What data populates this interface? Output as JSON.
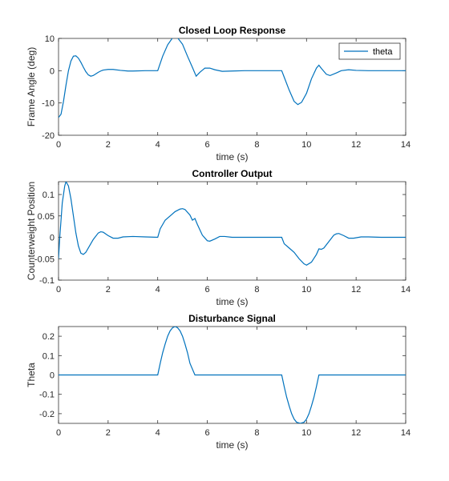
{
  "chart_data": [
    {
      "type": "line",
      "title": "Closed Loop Response",
      "xlabel": "time (s)",
      "ylabel": "Frame Angle (deg)",
      "xlim": [
        0,
        14
      ],
      "ylim": [
        -20,
        10
      ],
      "xticks": [
        "0",
        "2",
        "4",
        "6",
        "8",
        "10",
        "12",
        "14"
      ],
      "yticks": [
        "-20",
        "-10",
        "0",
        "10"
      ],
      "grid": false,
      "legend": {
        "location": "top-right",
        "entries": [
          "theta"
        ]
      },
      "series": [
        {
          "name": "theta",
          "color": "#0072bd",
          "points": [
            [
              0,
              -14.5
            ],
            [
              0.1,
              -13.5
            ],
            [
              0.2,
              -9.5
            ],
            [
              0.3,
              -4.5
            ],
            [
              0.4,
              0
            ],
            [
              0.5,
              3
            ],
            [
              0.6,
              4.5
            ],
            [
              0.7,
              4.6
            ],
            [
              0.8,
              3.9
            ],
            [
              0.9,
              2.6
            ],
            [
              1.0,
              1.1
            ],
            [
              1.1,
              -0.3
            ],
            [
              1.2,
              -1.3
            ],
            [
              1.3,
              -1.7
            ],
            [
              1.4,
              -1.5
            ],
            [
              1.5,
              -1.0
            ],
            [
              1.6,
              -0.5
            ],
            [
              1.7,
              -0.1
            ],
            [
              1.8,
              0.2
            ],
            [
              2.0,
              0.4
            ],
            [
              2.2,
              0.4
            ],
            [
              2.5,
              0.1
            ],
            [
              2.8,
              -0.1
            ],
            [
              3.0,
              -0.1
            ],
            [
              3.5,
              0
            ],
            [
              4.0,
              0
            ],
            [
              4.2,
              4.5
            ],
            [
              4.4,
              8
            ],
            [
              4.6,
              10.2
            ],
            [
              4.7,
              10.5
            ],
            [
              4.8,
              10.2
            ],
            [
              5.0,
              8.2
            ],
            [
              5.2,
              4.5
            ],
            [
              5.4,
              1
            ],
            [
              5.55,
              -1.7
            ],
            [
              5.7,
              -0.5
            ],
            [
              5.9,
              0.8
            ],
            [
              6.1,
              0.8
            ],
            [
              6.3,
              0.3
            ],
            [
              6.6,
              -0.2
            ],
            [
              7.0,
              -0.1
            ],
            [
              7.5,
              0
            ],
            [
              8.0,
              0
            ],
            [
              9.0,
              0
            ],
            [
              9.1,
              -2
            ],
            [
              9.3,
              -6
            ],
            [
              9.5,
              -9.5
            ],
            [
              9.65,
              -10.5
            ],
            [
              9.8,
              -9.8
            ],
            [
              10.0,
              -7
            ],
            [
              10.2,
              -2.5
            ],
            [
              10.4,
              0.8
            ],
            [
              10.5,
              1.7
            ],
            [
              10.6,
              0.7
            ],
            [
              10.8,
              -1.1
            ],
            [
              10.95,
              -1.5
            ],
            [
              11.2,
              -0.7
            ],
            [
              11.4,
              0
            ],
            [
              11.7,
              0.3
            ],
            [
              12.0,
              0.1
            ],
            [
              12.5,
              0
            ],
            [
              13.0,
              0
            ],
            [
              14.0,
              0
            ]
          ]
        }
      ]
    },
    {
      "type": "line",
      "title": "Controller Output",
      "xlabel": "time (s)",
      "ylabel": "Counterweight Position",
      "xlim": [
        0,
        14
      ],
      "ylim": [
        -0.1,
        0.13
      ],
      "xticks": [
        "0",
        "2",
        "4",
        "6",
        "8",
        "10",
        "12",
        "14"
      ],
      "yticks": [
        "-0.1",
        "-0.05",
        "0",
        "0.05",
        "0.1"
      ],
      "grid": false,
      "series": [
        {
          "color": "#0072bd",
          "points": [
            [
              0,
              -0.05
            ],
            [
              0.05,
              0
            ],
            [
              0.15,
              0.08
            ],
            [
              0.25,
              0.12
            ],
            [
              0.3,
              0.13
            ],
            [
              0.4,
              0.12
            ],
            [
              0.5,
              0.09
            ],
            [
              0.6,
              0.05
            ],
            [
              0.7,
              0.01
            ],
            [
              0.8,
              -0.02
            ],
            [
              0.9,
              -0.037
            ],
            [
              1.0,
              -0.04
            ],
            [
              1.1,
              -0.035
            ],
            [
              1.2,
              -0.025
            ],
            [
              1.4,
              -0.005
            ],
            [
              1.6,
              0.01
            ],
            [
              1.7,
              0.013
            ],
            [
              1.8,
              0.012
            ],
            [
              2.0,
              0.004
            ],
            [
              2.2,
              -0.002
            ],
            [
              2.4,
              -0.002
            ],
            [
              2.6,
              0.001
            ],
            [
              3.0,
              0.002
            ],
            [
              3.5,
              0.001
            ],
            [
              4.0,
              0
            ],
            [
              4.1,
              0.02
            ],
            [
              4.3,
              0.04
            ],
            [
              4.5,
              0.05
            ],
            [
              4.7,
              0.06
            ],
            [
              4.9,
              0.066
            ],
            [
              5.0,
              0.067
            ],
            [
              5.1,
              0.065
            ],
            [
              5.3,
              0.052
            ],
            [
              5.4,
              0.04
            ],
            [
              5.5,
              0.044
            ],
            [
              5.6,
              0.03
            ],
            [
              5.8,
              0.005
            ],
            [
              6.0,
              -0.008
            ],
            [
              6.1,
              -0.009
            ],
            [
              6.3,
              -0.004
            ],
            [
              6.5,
              0.002
            ],
            [
              6.7,
              0.002
            ],
            [
              7.0,
              0
            ],
            [
              7.5,
              0
            ],
            [
              8.0,
              0
            ],
            [
              9.0,
              0
            ],
            [
              9.1,
              -0.015
            ],
            [
              9.3,
              -0.025
            ],
            [
              9.5,
              -0.035
            ],
            [
              9.7,
              -0.05
            ],
            [
              9.9,
              -0.062
            ],
            [
              10.0,
              -0.065
            ],
            [
              10.2,
              -0.058
            ],
            [
              10.4,
              -0.04
            ],
            [
              10.5,
              -0.027
            ],
            [
              10.6,
              -0.028
            ],
            [
              10.7,
              -0.025
            ],
            [
              10.9,
              -0.01
            ],
            [
              11.1,
              0.005
            ],
            [
              11.2,
              0.008
            ],
            [
              11.3,
              0.009
            ],
            [
              11.5,
              0.004
            ],
            [
              11.7,
              -0.002
            ],
            [
              11.9,
              -0.002
            ],
            [
              12.2,
              0.001
            ],
            [
              12.5,
              0.001
            ],
            [
              13.0,
              0
            ],
            [
              14.0,
              0
            ]
          ]
        }
      ]
    },
    {
      "type": "line",
      "title": "Disturbance Signal",
      "xlabel": "time (s)",
      "ylabel": "Theta",
      "xlim": [
        0,
        14
      ],
      "ylim": [
        -0.25,
        0.25
      ],
      "xticks": [
        "0",
        "2",
        "4",
        "6",
        "8",
        "10",
        "12",
        "14"
      ],
      "yticks": [
        "-0.2",
        "-0.1",
        "0",
        "0.1",
        "0.2"
      ],
      "grid": false,
      "series": [
        {
          "color": "#0072bd",
          "points": [
            [
              0,
              0
            ],
            [
              4.0,
              0
            ],
            [
              4.1,
              0.06
            ],
            [
              4.2,
              0.115
            ],
            [
              4.3,
              0.16
            ],
            [
              4.4,
              0.2
            ],
            [
              4.5,
              0.228
            ],
            [
              4.6,
              0.244
            ],
            [
              4.7,
              0.25
            ],
            [
              4.8,
              0.244
            ],
            [
              4.9,
              0.228
            ],
            [
              5.0,
              0.2
            ],
            [
              5.1,
              0.16
            ],
            [
              5.2,
              0.115
            ],
            [
              5.3,
              0.06
            ],
            [
              5.5,
              0
            ],
            [
              9.0,
              0
            ],
            [
              9.1,
              -0.06
            ],
            [
              9.2,
              -0.115
            ],
            [
              9.3,
              -0.16
            ],
            [
              9.4,
              -0.2
            ],
            [
              9.5,
              -0.228
            ],
            [
              9.6,
              -0.244
            ],
            [
              9.75,
              -0.25
            ],
            [
              9.9,
              -0.244
            ],
            [
              10.0,
              -0.228
            ],
            [
              10.1,
              -0.2
            ],
            [
              10.2,
              -0.16
            ],
            [
              10.3,
              -0.115
            ],
            [
              10.4,
              -0.06
            ],
            [
              10.5,
              0
            ],
            [
              14.0,
              0
            ]
          ]
        }
      ]
    }
  ]
}
